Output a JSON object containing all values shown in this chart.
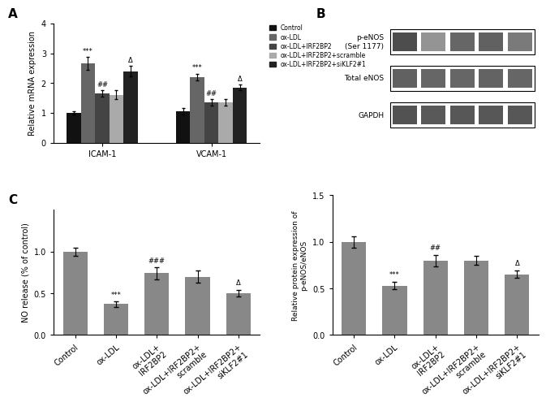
{
  "panel_A": {
    "groups": [
      "ICAM-1",
      "VCAM-1"
    ],
    "conditions": [
      "Control",
      "ox-LDL",
      "ox-LDL+IRF2BP2",
      "ox-LDL+IRF2BP2+scramble",
      "ox-LDL+IRF2BP2+siKLF2#1"
    ],
    "values": {
      "ICAM-1": [
        1.0,
        2.65,
        1.65,
        1.6,
        2.4
      ],
      "VCAM-1": [
        1.05,
        2.2,
        1.35,
        1.35,
        1.85
      ]
    },
    "errors": {
      "ICAM-1": [
        0.05,
        0.22,
        0.1,
        0.15,
        0.18
      ],
      "VCAM-1": [
        0.1,
        0.12,
        0.1,
        0.12,
        0.1
      ]
    },
    "annotations": {
      "ICAM-1": [
        "",
        "***",
        "##",
        "",
        "Δ"
      ],
      "VCAM-1": [
        "",
        "***",
        "##",
        "",
        "Δ"
      ]
    },
    "ylabel": "Relative mRNA expression",
    "ylim": [
      0,
      4
    ],
    "yticks": [
      0,
      1,
      2,
      3,
      4
    ],
    "colors": [
      "#111111",
      "#666666",
      "#444444",
      "#aaaaaa",
      "#222222"
    ],
    "legend_labels": [
      "Control",
      "ox-LDL",
      "ox-LDL+IRF2BP2",
      "ox-LDL+IRF2BP2+scramble",
      "ox-LDL+IRF2BP2+siKLF2#1"
    ]
  },
  "panel_B_bars": {
    "values": [
      1.0,
      0.53,
      0.8,
      0.8,
      0.65
    ],
    "errors": [
      0.06,
      0.04,
      0.06,
      0.05,
      0.04
    ],
    "annotations": [
      "",
      "***",
      "##",
      "",
      "Δ"
    ],
    "ylabel": "Relative protein expression of\np-eNOS/eNOS",
    "ylim": [
      0,
      1.5
    ],
    "yticks": [
      0.0,
      0.5,
      1.0,
      1.5
    ],
    "bar_color": "#888888"
  },
  "panel_C": {
    "values": [
      1.0,
      0.37,
      0.74,
      0.7,
      0.5
    ],
    "errors": [
      0.05,
      0.03,
      0.07,
      0.07,
      0.04
    ],
    "annotations": [
      "",
      "***",
      "###",
      "",
      "Δ"
    ],
    "ylabel": "NO release (% of control)",
    "ylim": [
      0,
      1.5
    ],
    "yticks": [
      0.0,
      0.5,
      1.0
    ],
    "bar_color": "#888888"
  },
  "x_labels_5": [
    "Control",
    "ox-LDL",
    "ox-LDL+\nIRF2BP2",
    "ox-LDL+IRF2BP2+\nscramble",
    "ox-LDL+IRF2BP2+\nsiKLF2#1"
  ],
  "wb_labels": [
    "p-eNOS\n(Ser 1177)",
    "Total eNOS",
    "GAPDH"
  ],
  "wb_band_darkness": {
    "p-eNOS": [
      0.3,
      0.58,
      0.4,
      0.38,
      0.48
    ],
    "Total eNOS": [
      0.38,
      0.4,
      0.4,
      0.39,
      0.4
    ],
    "GAPDH": [
      0.32,
      0.35,
      0.34,
      0.34,
      0.34
    ]
  },
  "background_color": "#ffffff"
}
